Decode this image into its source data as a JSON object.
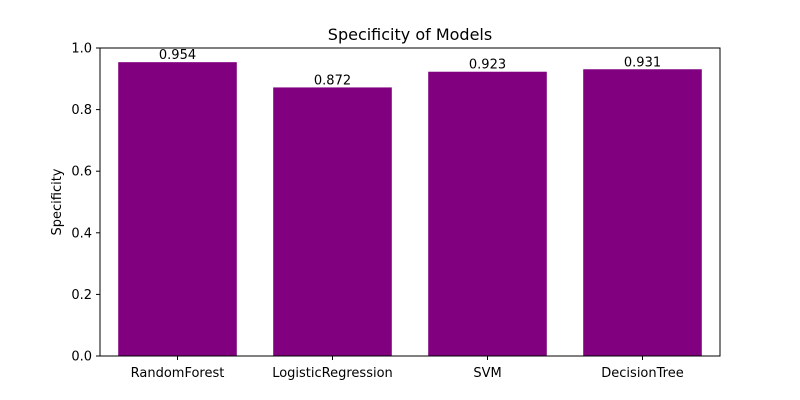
{
  "chart_data": {
    "type": "bar",
    "title": "Specificity of Models",
    "xlabel": "",
    "ylabel": "Specificity",
    "categories": [
      "RandomForest",
      "LogisticRegression",
      "SVM",
      "DecisionTree"
    ],
    "values": [
      0.954,
      0.872,
      0.923,
      0.931
    ],
    "data_labels": [
      "0.954",
      "0.872",
      "0.923",
      "0.931"
    ],
    "ylim": [
      0,
      1.0
    ],
    "yticks": [
      0.0,
      0.2,
      0.4,
      0.6,
      0.8,
      1.0
    ],
    "ytick_labels": [
      "0.0",
      "0.2",
      "0.4",
      "0.6",
      "0.8",
      "1.0"
    ],
    "bar_color": "#800080",
    "grid": false,
    "legend": "none"
  }
}
